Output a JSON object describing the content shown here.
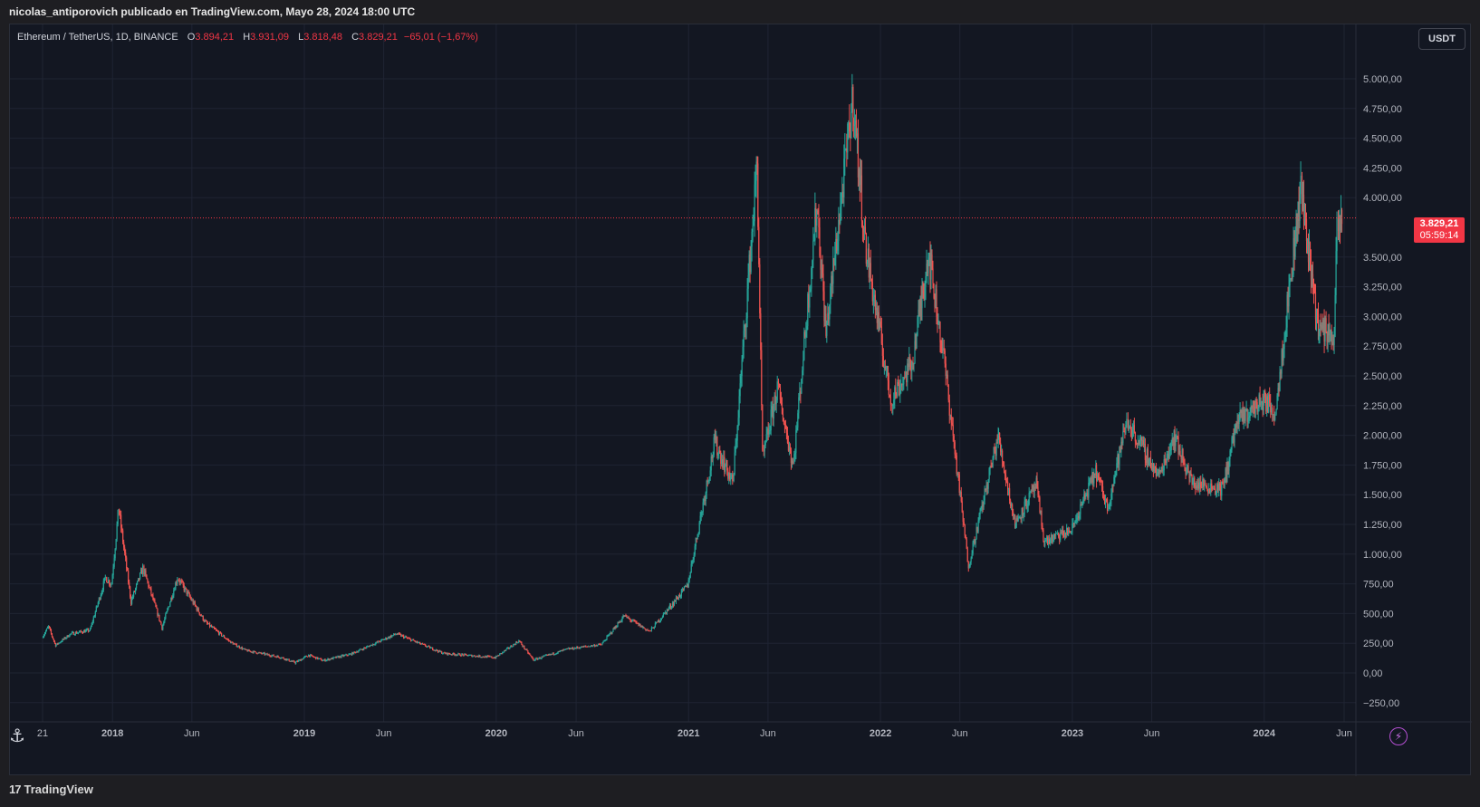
{
  "publish_line": "nicolas_antiporovich publicado en TradingView.com, Mayo 28, 2024 18:00 UTC",
  "legend": {
    "symbol": "Ethereum / TetherUS, 1D, BINANCE",
    "open_label": "O",
    "open": "3.894,21",
    "high_label": "H",
    "high": "3.931,09",
    "low_label": "L",
    "low": "3.818,48",
    "close_label": "C",
    "close": "3.829,21",
    "change": "−65,01 (−1,67%)"
  },
  "currency": "USDT",
  "last_price": {
    "price": "3.829,21",
    "countdown": "05:59:14"
  },
  "brand": "TradingView",
  "colors": {
    "background": "#131722",
    "grid": "#1f2433",
    "up": "#26a69a",
    "down": "#ef5350",
    "price_line": "#f23645"
  },
  "icons": [
    "anchor-icon",
    "bolt-icon",
    "tradingview-logo-icon"
  ],
  "chart_data": {
    "type": "candlestick",
    "interval": "1D",
    "ylim": [
      -250,
      5250
    ],
    "y_ticks": [
      {
        "value": 5000,
        "label": "5.000,00"
      },
      {
        "value": 4750,
        "label": "4.750,00"
      },
      {
        "value": 4500,
        "label": "4.500,00"
      },
      {
        "value": 4250,
        "label": "4.250,00"
      },
      {
        "value": 4000,
        "label": "4.000,00"
      },
      {
        "value": 3500,
        "label": "3.500,00"
      },
      {
        "value": 3250,
        "label": "3.250,00"
      },
      {
        "value": 3000,
        "label": "3.000,00"
      },
      {
        "value": 2750,
        "label": "2.750,00"
      },
      {
        "value": 2500,
        "label": "2.500,00"
      },
      {
        "value": 2250,
        "label": "2.250,00"
      },
      {
        "value": 2000,
        "label": "2.000,00"
      },
      {
        "value": 1750,
        "label": "1.750,00"
      },
      {
        "value": 1500,
        "label": "1.500,00"
      },
      {
        "value": 1250,
        "label": "1.250,00"
      },
      {
        "value": 1000,
        "label": "1.000,00"
      },
      {
        "value": 750,
        "label": "750,00"
      },
      {
        "value": 500,
        "label": "500,00"
      },
      {
        "value": 250,
        "label": "250,00"
      },
      {
        "value": 0,
        "label": "0,00"
      },
      {
        "value": -250,
        "label": "−250,00"
      }
    ],
    "x_ticks": [
      {
        "date": "2017-08-21",
        "label": "21",
        "bold": false
      },
      {
        "date": "2018-01-01",
        "label": "2018",
        "bold": true
      },
      {
        "date": "2018-06-01",
        "label": "Jun",
        "bold": false
      },
      {
        "date": "2019-01-01",
        "label": "2019",
        "bold": true
      },
      {
        "date": "2019-06-01",
        "label": "Jun",
        "bold": false
      },
      {
        "date": "2020-01-01",
        "label": "2020",
        "bold": true
      },
      {
        "date": "2020-06-01",
        "label": "Jun",
        "bold": false
      },
      {
        "date": "2021-01-01",
        "label": "2021",
        "bold": true
      },
      {
        "date": "2021-06-01",
        "label": "Jun",
        "bold": false
      },
      {
        "date": "2022-01-01",
        "label": "2022",
        "bold": true
      },
      {
        "date": "2022-06-01",
        "label": "Jun",
        "bold": false
      },
      {
        "date": "2023-01-01",
        "label": "2023",
        "bold": true
      },
      {
        "date": "2023-06-01",
        "label": "Jun",
        "bold": false
      },
      {
        "date": "2024-01-01",
        "label": "2024",
        "bold": true
      },
      {
        "date": "2024-06-01",
        "label": "Jun",
        "bold": false
      }
    ],
    "price_path": [
      [
        "2017-08-21",
        300
      ],
      [
        "2017-09-02",
        390
      ],
      [
        "2017-09-15",
        230
      ],
      [
        "2017-10-15",
        330
      ],
      [
        "2017-11-20",
        360
      ],
      [
        "2017-12-20",
        800
      ],
      [
        "2017-12-31",
        750
      ],
      [
        "2018-01-13",
        1400
      ],
      [
        "2018-02-06",
        600
      ],
      [
        "2018-03-01",
        880
      ],
      [
        "2018-04-06",
        380
      ],
      [
        "2018-05-06",
        800
      ],
      [
        "2018-06-29",
        420
      ],
      [
        "2018-08-14",
        260
      ],
      [
        "2018-09-12",
        190
      ],
      [
        "2018-11-20",
        130
      ],
      [
        "2018-12-15",
        85
      ],
      [
        "2019-01-10",
        150
      ],
      [
        "2019-02-07",
        105
      ],
      [
        "2019-04-01",
        160
      ],
      [
        "2019-06-26",
        330
      ],
      [
        "2019-09-24",
        165
      ],
      [
        "2019-12-31",
        130
      ],
      [
        "2020-02-14",
        270
      ],
      [
        "2020-03-13",
        110
      ],
      [
        "2020-05-15",
        200
      ],
      [
        "2020-07-20",
        240
      ],
      [
        "2020-09-01",
        480
      ],
      [
        "2020-10-20",
        350
      ],
      [
        "2020-12-31",
        740
      ],
      [
        "2021-02-20",
        1950
      ],
      [
        "2021-03-27",
        1600
      ],
      [
        "2021-05-12",
        4300
      ],
      [
        "2021-05-23",
        1800
      ],
      [
        "2021-06-20",
        2400
      ],
      [
        "2021-07-20",
        1750
      ],
      [
        "2021-09-03",
        3950
      ],
      [
        "2021-09-20",
        2850
      ],
      [
        "2021-11-10",
        4850
      ],
      [
        "2021-12-04",
        3600
      ],
      [
        "2022-01-22",
        2300
      ],
      [
        "2022-03-03",
        2600
      ],
      [
        "2022-04-03",
        3550
      ],
      [
        "2022-05-01",
        2700
      ],
      [
        "2022-06-18",
        900
      ],
      [
        "2022-08-13",
        2000
      ],
      [
        "2022-09-14",
        1250
      ],
      [
        "2022-10-25",
        1580
      ],
      [
        "2022-11-09",
        1100
      ],
      [
        "2022-12-31",
        1200
      ],
      [
        "2023-02-15",
        1700
      ],
      [
        "2023-03-10",
        1400
      ],
      [
        "2023-04-16",
        2120
      ],
      [
        "2023-06-15",
        1650
      ],
      [
        "2023-07-14",
        2000
      ],
      [
        "2023-08-17",
        1600
      ],
      [
        "2023-10-15",
        1550
      ],
      [
        "2023-11-10",
        2100
      ],
      [
        "2023-12-31",
        2300
      ],
      [
        "2024-01-23",
        2200
      ],
      [
        "2024-03-12",
        4080
      ],
      [
        "2024-04-13",
        2900
      ],
      [
        "2024-05-14",
        2850
      ],
      [
        "2024-05-20",
        3700
      ],
      [
        "2024-05-28",
        3829
      ]
    ],
    "last_close": 3829.21
  }
}
